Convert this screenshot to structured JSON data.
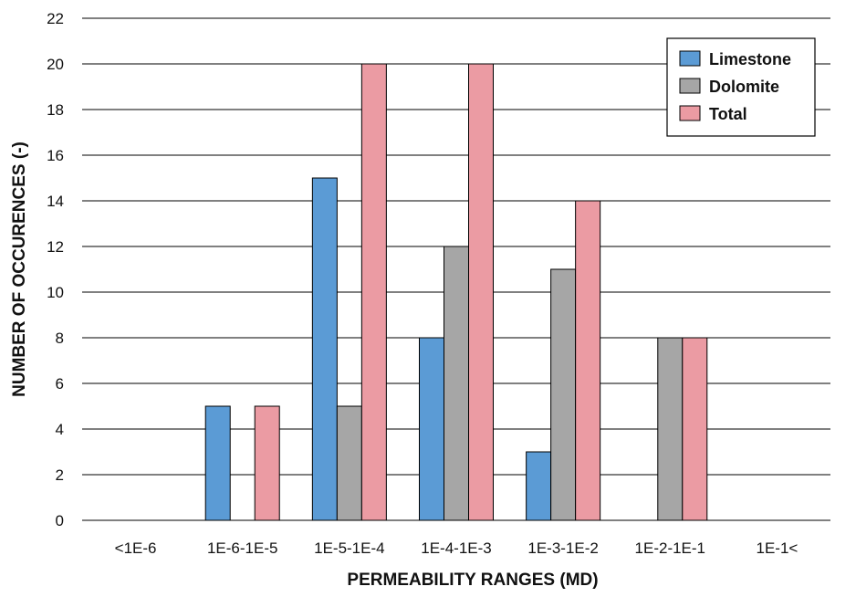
{
  "chart_data": {
    "type": "bar",
    "xlabel": "PERMEABILITY RANGES (MD)",
    "ylabel": "NUMBER OF OCCURENCES (-)",
    "ylim": [
      0,
      22
    ],
    "yticks": [
      0,
      2,
      4,
      6,
      8,
      10,
      12,
      14,
      16,
      18,
      20,
      22
    ],
    "categories": [
      "<1E-6",
      "1E-6-1E-5",
      "1E-5-1E-4",
      "1E-4-1E-3",
      "1E-3-1E-2",
      "1E-2-1E-1",
      "1E-1<"
    ],
    "series": [
      {
        "name": "Limestone",
        "color": "#5b9bd5",
        "values": [
          0,
          5,
          15,
          8,
          3,
          0,
          0
        ]
      },
      {
        "name": "Dolomite",
        "color": "#a6a6a6",
        "values": [
          0,
          0,
          5,
          12,
          11,
          8,
          0
        ]
      },
      {
        "name": "Total",
        "color": "#eb9ba3",
        "values": [
          0,
          5,
          20,
          20,
          14,
          8,
          0
        ]
      }
    ],
    "grid": "horizontal",
    "legend_position": "top-right"
  }
}
